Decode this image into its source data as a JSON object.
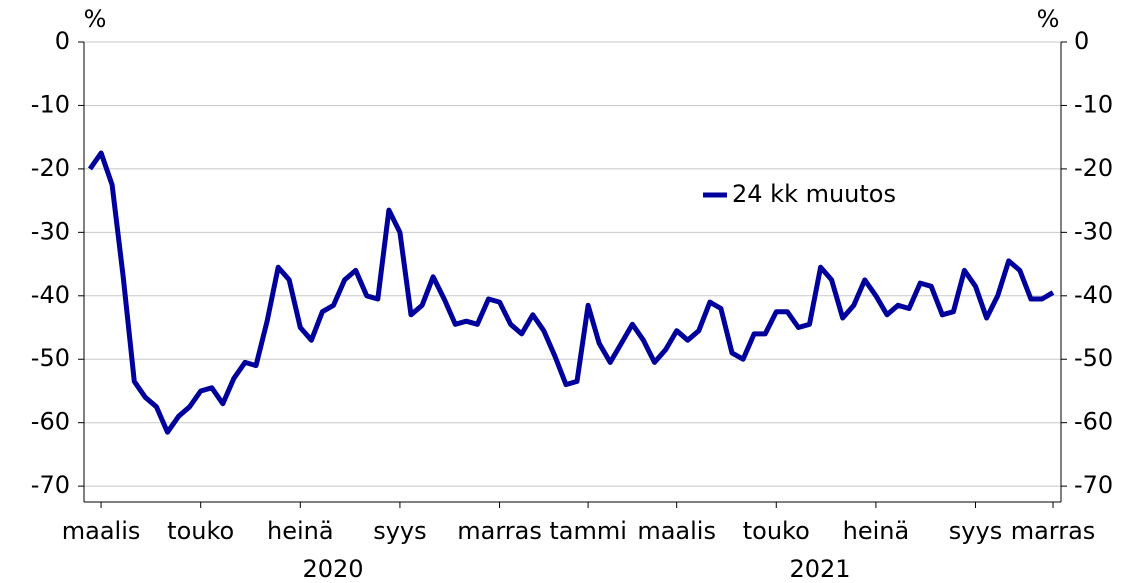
{
  "chart_data": {
    "type": "line",
    "y_unit": "%",
    "y2_unit": "%",
    "categories": [
      null,
      "maalis",
      null,
      null,
      null,
      null,
      null,
      null,
      null,
      null,
      "touko",
      null,
      null,
      null,
      null,
      null,
      null,
      null,
      null,
      "heinä",
      null,
      null,
      null,
      null,
      null,
      null,
      null,
      null,
      "syys",
      null,
      null,
      null,
      null,
      null,
      null,
      null,
      null,
      "marras",
      null,
      null,
      null,
      null,
      null,
      null,
      null,
      "tammi",
      null,
      null,
      null,
      null,
      null,
      null,
      null,
      "maalis",
      null,
      null,
      null,
      null,
      null,
      null,
      null,
      null,
      "touko",
      null,
      null,
      null,
      null,
      null,
      null,
      null,
      null,
      "heinä",
      null,
      null,
      null,
      null,
      null,
      null,
      null,
      null,
      "syys",
      null,
      null,
      null,
      null,
      null,
      null,
      "marras"
    ],
    "years": [
      "2020",
      "2021"
    ],
    "series": [
      {
        "name": "24 kk muutos",
        "color": "#00009c",
        "values": [
          -20,
          -17.5,
          -22.5,
          -37,
          -53.5,
          -56,
          -57.5,
          -61.5,
          -59,
          -57.5,
          -55,
          -54.5,
          -57,
          -53,
          -50.5,
          -51,
          -44,
          -35.5,
          -37.5,
          -45,
          -47,
          -42.5,
          -41.5,
          -37.5,
          -36,
          -40,
          -40.5,
          -26.5,
          -30,
          -43,
          -41.5,
          -37,
          -40.5,
          -44.5,
          -44,
          -44.5,
          -40.5,
          -41,
          -44.5,
          -46,
          -43,
          -45.5,
          -49.5,
          -54,
          -53.5,
          -41.5,
          -47.5,
          -50.5,
          -47.5,
          -44.5,
          -47,
          -50.5,
          -48.5,
          -45.5,
          -47,
          -45.5,
          -41,
          -42,
          -49,
          -50,
          -46,
          -46,
          -42.5,
          -42.5,
          -45,
          -44.5,
          -35.5,
          -37.5,
          -43.5,
          -41.5,
          -37.5,
          -40,
          -43,
          -41.5,
          -42,
          -38,
          -38.5,
          -43,
          -42.5,
          -36,
          -38.5,
          -43.5,
          -40,
          -34.5,
          -36,
          -40.5,
          -40.5,
          -39.5
        ]
      }
    ],
    "ylim": [
      -72.5,
      0
    ],
    "yticks": [
      0,
      -10,
      -20,
      -30,
      -40,
      -50,
      -60,
      -70
    ],
    "y2lim": [
      -72.5,
      0
    ],
    "y2ticks": [
      0,
      -10,
      -20,
      -30,
      -40,
      -50,
      -60,
      -70
    ],
    "grid": true,
    "legend": "upper right"
  }
}
